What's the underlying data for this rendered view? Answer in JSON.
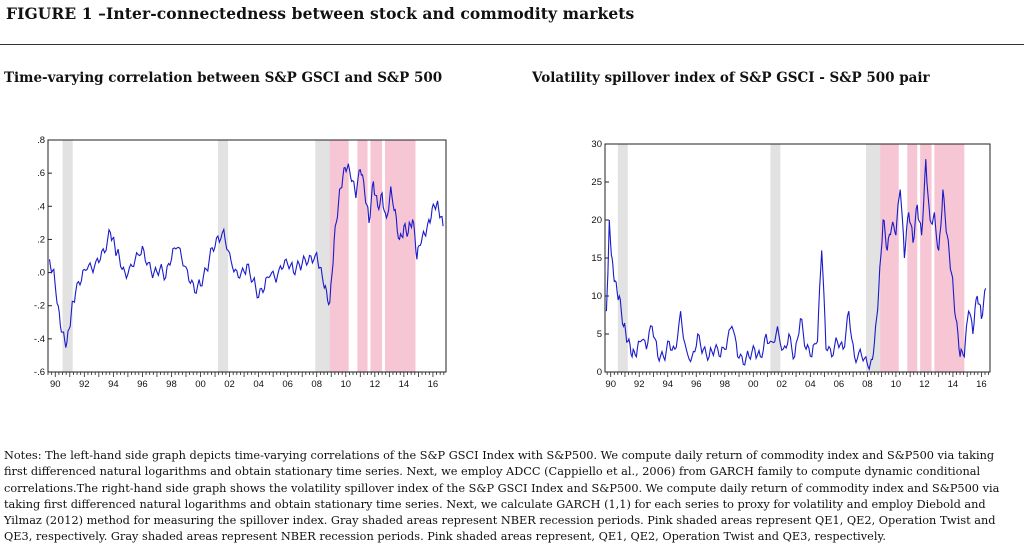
{
  "figure_title": "FIGURE 1 –Inter-connectedness between stock and commodity markets",
  "notes": "Notes: The left-hand side graph depicts time-varying correlations of the S&P GSCI Index with S&P500. We compute daily return of commodity index and S&P500 via taking first differenced natural logarithms and obtain stationary time series. Next, we employ ADCC (Cappiello et al., 2006) from GARCH family to compute dynamic conditional correlations.The right-hand side graph shows the volatility spillover index of the S&P GSCI Index and S&P500. We compute daily return of commodity index and S&P500 via taking first differenced natural logarithms and obtain stationary time series. Next, we calculate GARCH (1,1) for each series to proxy for volatility and employ Diebold and Yilmaz (2012) method for measuring the spillover index. Gray shaded areas represent NBER recession periods. Pink shaded areas represent QE1, QE2, Operation Twist and QE3, respectively.  Gray shaded areas represent NBER recession periods. Pink shaded areas represent, QE1, QE2, Operation Twist and QE3, respectively.",
  "colors": {
    "line": "#1a1acc",
    "recession": "#e2e2e2",
    "qe": "#f6c6d4",
    "axis": "#222222"
  },
  "chart_data": [
    {
      "type": "line",
      "title": "Time-varying correlation between S&P GSCI and S&P 500",
      "xlabel": "",
      "ylabel": "",
      "xlim": [
        1989.5,
        2016.9
      ],
      "ylim": [
        -0.6,
        0.8
      ],
      "xticks": [
        {
          "v": 1990,
          "label": "90"
        },
        {
          "v": 1992,
          "label": "92"
        },
        {
          "v": 1994,
          "label": "94"
        },
        {
          "v": 1996,
          "label": "96"
        },
        {
          "v": 1998,
          "label": "98"
        },
        {
          "v": 2000,
          "label": "00"
        },
        {
          "v": 2002,
          "label": "02"
        },
        {
          "v": 2004,
          "label": "04"
        },
        {
          "v": 2006,
          "label": "06"
        },
        {
          "v": 2008,
          "label": "08"
        },
        {
          "v": 2010,
          "label": "10"
        },
        {
          "v": 2012,
          "label": "12"
        },
        {
          "v": 2014,
          "label": "14"
        },
        {
          "v": 2016,
          "label": "16"
        }
      ],
      "yticks": [
        {
          "v": 0.8,
          "label": ".8"
        },
        {
          "v": 0.6,
          "label": ".6"
        },
        {
          "v": 0.4,
          "label": ".4"
        },
        {
          "v": 0.2,
          "label": ".2"
        },
        {
          "v": 0.0,
          "label": ".0"
        },
        {
          "v": -0.2,
          "label": "-.2"
        },
        {
          "v": -0.4,
          "label": "-.4"
        },
        {
          "v": -0.6,
          "label": "-.6"
        }
      ],
      "shaded": [
        {
          "kind": "recession",
          "start": 1990.5,
          "end": 1991.2
        },
        {
          "kind": "recession",
          "start": 2001.2,
          "end": 2001.9
        },
        {
          "kind": "recession",
          "start": 2007.9,
          "end": 2009.5
        },
        {
          "kind": "qe",
          "start": 2008.9,
          "end": 2010.2
        },
        {
          "kind": "qe",
          "start": 2010.8,
          "end": 2011.5
        },
        {
          "kind": "qe",
          "start": 2011.7,
          "end": 2012.5
        },
        {
          "kind": "qe",
          "start": 2012.7,
          "end": 2014.8
        }
      ],
      "series": [
        {
          "x": [
            1989.6,
            1989.9,
            1990.2,
            1990.5,
            1990.8,
            1991.1,
            1991.4,
            1991.8,
            1992.2,
            1992.6,
            1993.0,
            1993.4,
            1993.8,
            1994.1,
            1994.4,
            1994.8,
            1995.2,
            1995.6,
            1996.0,
            1996.4,
            1996.8,
            1997.2,
            1997.6,
            1998.0,
            1998.4,
            1998.8,
            1999.2,
            1999.6,
            2000.0,
            2000.4,
            2000.8,
            2001.2,
            2001.6,
            2002.0,
            2002.4,
            2002.8,
            2003.2,
            2003.6,
            2004.0,
            2004.4,
            2004.8,
            2005.2,
            2005.6,
            2006.0,
            2006.4,
            2006.8,
            2007.2,
            2007.6,
            2008.0,
            2008.3,
            2008.6,
            2008.9,
            2009.2,
            2009.5,
            2009.8,
            2010.1,
            2010.4,
            2010.7,
            2011.0,
            2011.3,
            2011.6,
            2011.9,
            2012.2,
            2012.5,
            2012.8,
            2013.1,
            2013.4,
            2013.7,
            2014.0,
            2014.3,
            2014.6,
            2014.9,
            2015.2,
            2015.5,
            2015.8,
            2016.1,
            2016.4,
            2016.7
          ],
          "y": [
            0.08,
            0.02,
            -0.2,
            -0.36,
            -0.42,
            -0.25,
            -0.12,
            -0.05,
            0.02,
            0.0,
            0.06,
            0.12,
            0.24,
            0.16,
            0.1,
            0.0,
            0.05,
            0.12,
            0.16,
            0.06,
            0.0,
            0.02,
            -0.03,
            0.08,
            0.15,
            0.04,
            -0.05,
            -0.12,
            -0.08,
            0.02,
            0.15,
            0.22,
            0.26,
            0.12,
            0.02,
            0.0,
            0.05,
            -0.05,
            -0.15,
            -0.1,
            -0.02,
            -0.06,
            0.02,
            0.05,
            0.0,
            0.05,
            0.08,
            0.1,
            0.12,
            0.03,
            -0.08,
            -0.18,
            0.2,
            0.42,
            0.58,
            0.63,
            0.55,
            0.45,
            0.62,
            0.48,
            0.3,
            0.55,
            0.4,
            0.48,
            0.33,
            0.52,
            0.38,
            0.2,
            0.28,
            0.24,
            0.32,
            0.08,
            0.18,
            0.22,
            0.3,
            0.4,
            0.38,
            0.28
          ]
        }
      ]
    },
    {
      "type": "line",
      "title": "Volatility spillover index of S&P GSCI - S&P 500 pair",
      "xlabel": "",
      "ylabel": "",
      "xlim": [
        1989.6,
        2016.6
      ],
      "ylim": [
        0,
        30
      ],
      "xticks": [
        {
          "v": 1990,
          "label": "90"
        },
        {
          "v": 1992,
          "label": "92"
        },
        {
          "v": 1994,
          "label": "94"
        },
        {
          "v": 1996,
          "label": "96"
        },
        {
          "v": 1998,
          "label": "98"
        },
        {
          "v": 2000,
          "label": "00"
        },
        {
          "v": 2002,
          "label": "02"
        },
        {
          "v": 2004,
          "label": "04"
        },
        {
          "v": 2006,
          "label": "06"
        },
        {
          "v": 2008,
          "label": "08"
        },
        {
          "v": 2010,
          "label": "10"
        },
        {
          "v": 2012,
          "label": "12"
        },
        {
          "v": 2014,
          "label": "14"
        },
        {
          "v": 2016,
          "label": "16"
        }
      ],
      "yticks": [
        {
          "v": 30,
          "label": "30"
        },
        {
          "v": 25,
          "label": "25"
        },
        {
          "v": 20,
          "label": "20"
        },
        {
          "v": 15,
          "label": "15"
        },
        {
          "v": 10,
          "label": "10"
        },
        {
          "v": 5,
          "label": "5"
        },
        {
          "v": 0,
          "label": "0"
        }
      ],
      "shaded": [
        {
          "kind": "recession",
          "start": 1990.5,
          "end": 1991.2
        },
        {
          "kind": "recession",
          "start": 2001.2,
          "end": 2001.9
        },
        {
          "kind": "recession",
          "start": 2007.9,
          "end": 2009.5
        },
        {
          "kind": "qe",
          "start": 2008.9,
          "end": 2010.2
        },
        {
          "kind": "qe",
          "start": 2010.8,
          "end": 2011.5
        },
        {
          "kind": "qe",
          "start": 2011.7,
          "end": 2012.5
        },
        {
          "kind": "qe",
          "start": 2012.7,
          "end": 2014.8
        }
      ],
      "series": [
        {
          "x": [
            1989.7,
            1989.9,
            1990.1,
            1990.3,
            1990.6,
            1990.9,
            1991.2,
            1991.5,
            1991.8,
            1992.1,
            1992.5,
            1992.9,
            1993.3,
            1993.7,
            1994.1,
            1994.5,
            1994.9,
            1995.3,
            1995.7,
            1996.1,
            1996.5,
            1996.9,
            1997.3,
            1997.7,
            1998.1,
            1998.5,
            1998.9,
            1999.3,
            1999.7,
            2000.1,
            2000.5,
            2000.9,
            2001.3,
            2001.7,
            2002.1,
            2002.5,
            2002.9,
            2003.3,
            2003.7,
            2004.1,
            2004.5,
            2004.8,
            2005.1,
            2005.5,
            2005.9,
            2006.3,
            2006.7,
            2007.1,
            2007.5,
            2007.9,
            2008.2,
            2008.5,
            2008.8,
            2009.1,
            2009.4,
            2009.7,
            2010.0,
            2010.3,
            2010.6,
            2010.9,
            2011.2,
            2011.5,
            2011.8,
            2012.1,
            2012.4,
            2012.7,
            2013.0,
            2013.3,
            2013.6,
            2013.9,
            2014.2,
            2014.5,
            2014.8,
            2015.1,
            2015.4,
            2015.7,
            2016.0,
            2016.3
          ],
          "y": [
            8,
            20,
            15,
            12,
            10,
            6,
            4,
            2,
            2,
            4,
            3,
            6,
            2,
            2,
            4,
            3,
            8,
            3,
            2,
            5,
            3,
            2,
            3,
            2,
            3,
            6,
            2,
            1,
            2,
            3,
            2,
            5,
            4,
            6,
            3,
            5,
            2,
            7,
            3,
            2,
            4,
            16,
            3,
            2,
            4,
            3,
            8,
            2,
            3,
            2,
            1,
            4,
            11,
            20,
            16,
            19,
            18,
            24,
            15,
            21,
            17,
            22,
            18,
            28,
            20,
            21,
            16,
            24,
            18,
            13,
            7,
            2,
            2,
            8,
            5,
            10,
            7,
            11
          ]
        }
      ]
    }
  ]
}
